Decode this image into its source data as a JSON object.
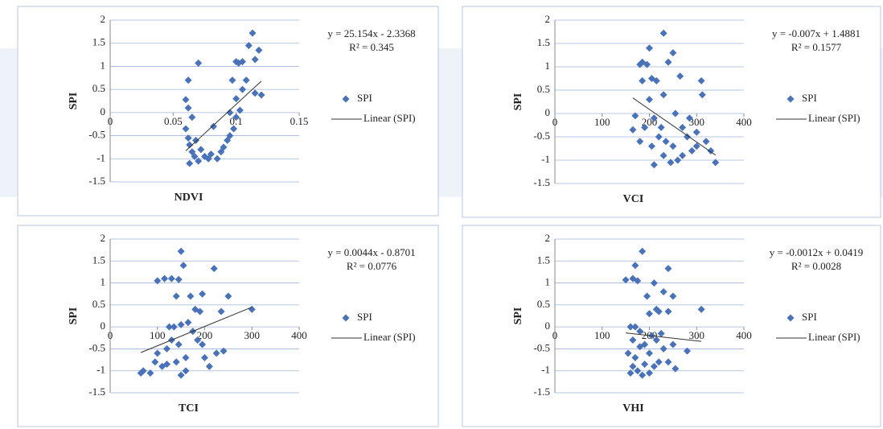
{
  "chart_data": [
    {
      "type": "scatter",
      "x_label": "NDVI",
      "y_label": "SPI",
      "x": [
        0.062,
        0.06,
        0.062,
        0.065,
        0.06,
        0.062,
        0.063,
        0.065,
        0.067,
        0.07,
        0.063,
        0.072,
        0.075,
        0.078,
        0.08,
        0.068,
        0.07,
        0.082,
        0.085,
        0.088,
        0.09,
        0.093,
        0.095,
        0.097,
        0.1,
        0.102,
        0.1,
        0.098,
        0.105,
        0.108,
        0.103,
        0.11,
        0.113,
        0.115,
        0.118,
        0.12,
        0.115,
        0.105,
        0.095,
        0.1
      ],
      "series": [
        {
          "name": "SPI",
          "color": "#4a72b8",
          "values": [
            0.7,
            0.28,
            0.1,
            -0.1,
            -0.35,
            -0.55,
            -0.7,
            -0.85,
            -0.95,
            -1.05,
            -1.1,
            -0.8,
            -0.95,
            -1.0,
            -0.9,
            -0.6,
            1.07,
            -0.3,
            -1.0,
            -0.85,
            -0.75,
            -0.6,
            -0.5,
            0.7,
            1.1,
            1.07,
            -0.1,
            -0.35,
            1.1,
            0.7,
            0.05,
            1.45,
            1.72,
            1.15,
            1.35,
            0.38,
            0.42,
            0.5,
            0.0,
            0.3
          ]
        }
      ],
      "trendline": {
        "name": "Linear (SPI)",
        "equation": "y = 25.154x - 2.3368",
        "r_squared": "R² = 0.345",
        "slope": 25.154,
        "intercept": -2.3368
      },
      "xlim": [
        0,
        0.15
      ],
      "xticks": [
        0,
        0.05,
        0.1,
        0.15
      ],
      "ylim": [
        -1.5,
        2
      ],
      "yticks": [
        2,
        1.5,
        1,
        0.5,
        0,
        -0.5,
        -1,
        -1.5
      ],
      "grid": true
    },
    {
      "type": "scatter",
      "x_label": "VCI",
      "y_label": "SPI",
      "x": [
        170,
        165,
        180,
        185,
        195,
        200,
        205,
        185,
        215,
        230,
        240,
        250,
        230,
        200,
        210,
        190,
        180,
        205,
        220,
        235,
        250,
        265,
        270,
        280,
        290,
        300,
        310,
        312,
        320,
        330,
        340,
        260,
        245,
        230,
        210,
        270,
        285,
        300,
        255,
        225
      ],
      "series": [
        {
          "name": "SPI",
          "color": "#4a72b8",
          "values": [
            -0.05,
            -0.35,
            1.05,
            1.1,
            1.05,
            1.4,
            0.75,
            0.7,
            0.7,
            1.72,
            1.1,
            1.3,
            0.4,
            0.3,
            -0.1,
            -0.3,
            -0.6,
            -0.7,
            -0.5,
            -0.6,
            -0.7,
            0.8,
            -0.3,
            -0.5,
            -0.8,
            -0.7,
            0.7,
            0.4,
            -0.6,
            -0.8,
            -1.05,
            -1.0,
            -1.05,
            -0.9,
            -1.1,
            -0.9,
            -0.1,
            -0.4,
            0.0,
            -0.3
          ]
        }
      ],
      "trendline": {
        "name": "Linear (SPI)",
        "equation": "y = -0.007x + 1.4881",
        "r_squared": "R² = 0.1577",
        "slope": -0.007,
        "intercept": 1.4881
      },
      "xlim": [
        0,
        400
      ],
      "xticks": [
        0,
        100,
        200,
        300,
        400
      ],
      "ylim": [
        -1.5,
        2
      ],
      "yticks": [
        2,
        1.5,
        1,
        0.5,
        0,
        -0.5,
        -1,
        -1.5
      ],
      "grid": true
    },
    {
      "type": "scatter",
      "x_label": "TCI",
      "y_label": "SPI",
      "x": [
        65,
        70,
        85,
        95,
        100,
        110,
        120,
        130,
        140,
        150,
        160,
        145,
        135,
        125,
        150,
        165,
        175,
        185,
        200,
        210,
        225,
        240,
        100,
        115,
        130,
        145,
        150,
        155,
        140,
        170,
        195,
        180,
        220,
        235,
        250,
        300,
        190,
        160,
        120,
        195
      ],
      "series": [
        {
          "name": "SPI",
          "color": "#4a72b8",
          "values": [
            -1.05,
            -1.0,
            -1.05,
            -0.8,
            -0.6,
            -0.9,
            -0.5,
            -0.3,
            -0.8,
            -1.1,
            -1.0,
            -0.4,
            0.0,
            0.0,
            0.05,
            0.1,
            -0.1,
            -0.3,
            -0.7,
            -0.9,
            -0.6,
            -0.55,
            1.05,
            1.1,
            1.1,
            1.08,
            1.72,
            1.4,
            0.7,
            0.7,
            0.75,
            0.4,
            1.33,
            0.35,
            0.7,
            0.4,
            0.35,
            -0.7,
            -0.85,
            -0.4
          ]
        }
      ],
      "trendline": {
        "name": "Linear (SPI)",
        "equation": "y = 0.0044x - 0.8701",
        "r_squared": "R² = 0.0776",
        "slope": 0.0044,
        "intercept": -0.8701
      },
      "xlim": [
        0,
        400
      ],
      "xticks": [
        0,
        100,
        200,
        300,
        400
      ],
      "ylim": [
        -1.5,
        2
      ],
      "yticks": [
        2,
        1.5,
        1,
        0.5,
        0,
        -0.5,
        -1,
        -1.5
      ],
      "grid": true
    },
    {
      "type": "scatter",
      "x_label": "VHI",
      "y_label": "SPI",
      "x": [
        150,
        165,
        175,
        170,
        185,
        195,
        210,
        215,
        230,
        240,
        250,
        240,
        220,
        200,
        310,
        160,
        170,
        180,
        165,
        190,
        200,
        215,
        230,
        240,
        255,
        280,
        160,
        175,
        185,
        200,
        210,
        220,
        170,
        155,
        190,
        205,
        225,
        180,
        250,
        165
      ],
      "series": [
        {
          "name": "SPI",
          "color": "#4a72b8",
          "values": [
            1.07,
            1.1,
            1.05,
            1.4,
            1.72,
            0.7,
            1.0,
            0.4,
            0.8,
            1.33,
            0.7,
            0.35,
            0.35,
            0.3,
            0.4,
            0.0,
            0.0,
            -0.1,
            -0.3,
            -0.4,
            -0.6,
            -0.3,
            -0.5,
            -0.8,
            -0.95,
            -0.55,
            -1.05,
            -1.0,
            -1.1,
            -1.05,
            -0.9,
            -0.8,
            -0.7,
            -0.6,
            -0.85,
            -0.2,
            -0.15,
            -0.45,
            -0.4,
            -0.9
          ]
        }
      ],
      "trendline": {
        "name": "Linear (SPI)",
        "equation": "y = -0.0012x + 0.0419",
        "r_squared": "R² = 0.0028",
        "slope": -0.0012,
        "intercept": 0.0419
      },
      "xlim": [
        0,
        400
      ],
      "xticks": [
        0,
        100,
        200,
        300,
        400
      ],
      "ylim": [
        -1.5,
        2
      ],
      "yticks": [
        2,
        1.5,
        1,
        0.5,
        0,
        -0.5,
        -1,
        -1.5
      ],
      "grid": true
    }
  ]
}
